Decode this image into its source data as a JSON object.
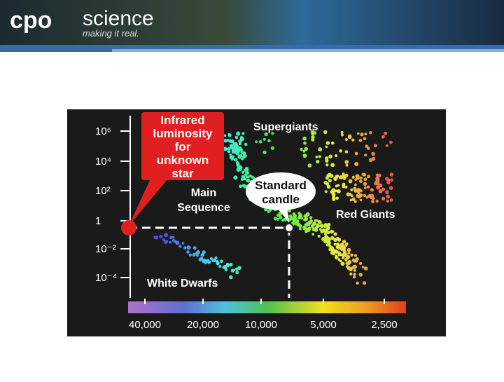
{
  "header": {
    "brand": "cpo",
    "name": "science",
    "tagline": "making it real."
  },
  "figure": {
    "callout": [
      "Infrared",
      "luminosity",
      "for",
      "unknown",
      "star"
    ],
    "standard_candle": [
      "Standard",
      "candle"
    ],
    "labels": {
      "supergiants": "Supergiants",
      "main_sequence": [
        "Main",
        "Sequence"
      ],
      "red_giants": "Red Giants",
      "white_dwarfs": "White Dwarfs"
    },
    "y_ticks": [
      "10⁶",
      "10⁴",
      "10²",
      "1",
      "10⁻²",
      "10⁻⁴"
    ],
    "x_ticks": [
      "40,000",
      "20,000",
      "10,000",
      "5,000",
      "2,500"
    ]
  }
}
